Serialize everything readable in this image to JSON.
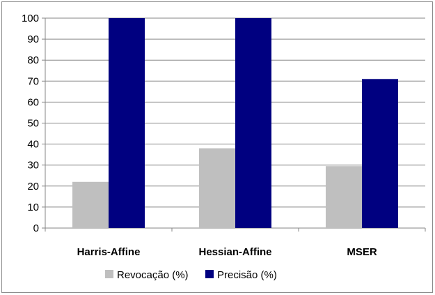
{
  "chart_data": {
    "type": "bar",
    "categories": [
      "Harris-Affine",
      "Hessian-Affine",
      "MSER"
    ],
    "series": [
      {
        "name": "Revocação (%)",
        "values": [
          22,
          38,
          29.5
        ],
        "color": "#bfbfbf"
      },
      {
        "name": "Precisão (%)",
        "values": [
          100,
          100,
          71
        ],
        "color": "#000080"
      }
    ],
    "ylim": [
      0,
      100
    ],
    "yticks": [
      0,
      10,
      20,
      30,
      40,
      50,
      60,
      70,
      80,
      90,
      100
    ],
    "grid": true,
    "legend_position": "bottom"
  }
}
